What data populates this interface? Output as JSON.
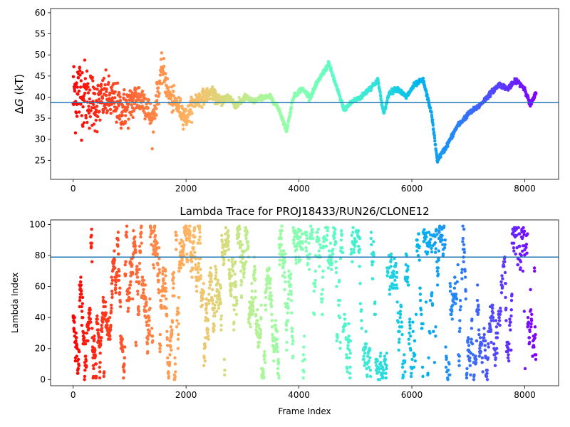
{
  "chart_data": [
    {
      "type": "scatter",
      "title": "",
      "xlabel": "",
      "ylabel_symbol": "ΔG",
      "ylabel": "ΔG (kT)",
      "ylabel_unit": "(kT)",
      "xlim": [
        -400,
        8600
      ],
      "ylim": [
        20.5,
        61
      ],
      "xticks": [
        0,
        2000,
        4000,
        6000,
        8000
      ],
      "xtick_labels": [
        "0",
        "2000",
        "4000",
        "6000",
        "8000"
      ],
      "yticks": [
        25,
        30,
        35,
        40,
        45,
        50,
        55,
        60
      ],
      "ytick_labels": [
        "25",
        "30",
        "35",
        "40",
        "45",
        "50",
        "55",
        "60"
      ],
      "hline": 38.7,
      "hline_color": "#1f77b4",
      "colormap": "rainbow (reversed with frame index: red at 0 → violet at 8200)",
      "grid": false,
      "trace_keypoints": {
        "x": [
          0,
          60,
          150,
          280,
          420,
          560,
          720,
          860,
          1000,
          1140,
          1280,
          1400,
          1500,
          1580,
          1700,
          1850,
          2000,
          2150,
          2300,
          2450,
          2600,
          2750,
          2900,
          3050,
          3200,
          3350,
          3500,
          3650,
          3780,
          3900,
          4050,
          4200,
          4350,
          4530,
          4650,
          4800,
          4950,
          5100,
          5250,
          5400,
          5500,
          5600,
          5750,
          5900,
          6050,
          6200,
          6350,
          6450,
          6600,
          6800,
          7000,
          7200,
          7400,
          7550,
          7700,
          7850,
          8000,
          8100,
          8200
        ],
        "y": [
          40,
          42,
          41,
          40,
          38,
          40,
          39,
          37,
          38,
          40,
          39,
          34,
          41,
          47,
          40,
          38,
          35,
          39,
          40,
          41,
          39,
          40,
          38,
          40,
          39,
          40,
          40,
          37,
          32,
          40,
          42,
          40,
          44,
          48,
          43,
          37,
          39,
          40,
          42,
          44,
          36,
          41,
          42,
          40,
          43,
          44,
          36,
          25,
          28,
          33,
          36,
          38,
          41,
          43,
          42,
          44,
          42,
          38,
          41
        ]
      },
      "scatter_spread_by_frame": {
        "x": [
          0,
          200,
          500,
          1000,
          1600,
          2500,
          3200,
          8200
        ],
        "spread": [
          11,
          9,
          6,
          5,
          3.5,
          1.5,
          0.6,
          0.6
        ]
      }
    },
    {
      "type": "scatter",
      "title": "Lambda Trace for PROJ18433/RUN26/CLONE12",
      "xlabel": "Frame Index",
      "ylabel": "Lambda Index",
      "xlim": [
        -400,
        8600
      ],
      "ylim": [
        -4,
        103
      ],
      "xticks": [
        0,
        2000,
        4000,
        6000,
        8000
      ],
      "xtick_labels": [
        "0",
        "2000",
        "4000",
        "6000",
        "8000"
      ],
      "yticks": [
        0,
        20,
        40,
        60,
        80,
        100
      ],
      "ytick_labels": [
        "0",
        "20",
        "40",
        "60",
        "80",
        "100"
      ],
      "hline": 79,
      "hline_color": "#1f77b4",
      "colormap": "rainbow (reversed with frame index: red at 0 → violet at 8200)",
      "grid": false,
      "value_range": [
        0,
        99
      ],
      "dense_bands_upper": [
        [
          6200,
          6450,
          82,
          99
        ],
        [
          7950,
          8050,
          80,
          99
        ]
      ]
    }
  ]
}
